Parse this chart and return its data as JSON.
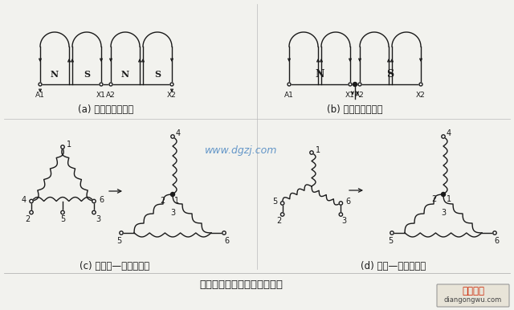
{
  "bg_color": "#f2f2ee",
  "line_color": "#1a1a1a",
  "title_text": "双速电动机改变极对数的原理",
  "watermark": "www.dgzj.com",
  "watermark_color": "#3377bb",
  "label_a": "(a) 四极绕组展开图",
  "label_b": "(b) 二极绕组展开图",
  "label_c": "(c) 三角形—双星形转换",
  "label_d": "(d) 星形—双星形转换",
  "brand_text": "电工之屋",
  "brand_sub": "diangongwu.com",
  "font_size_label": 8.5,
  "font_size_title": 9.5
}
